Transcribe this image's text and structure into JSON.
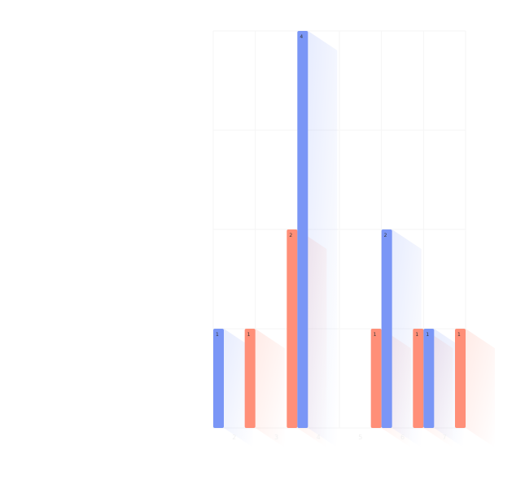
{
  "chart_data": {
    "type": "bar",
    "title": "",
    "xlabel": "",
    "ylabel": "",
    "categories": [
      "2",
      "3",
      "4",
      "5",
      "6",
      "7"
    ],
    "series": [
      {
        "color": "#7a96f6",
        "values": [
          1,
          null,
          4,
          null,
          2,
          1
        ]
      },
      {
        "color": "#ff8f78",
        "values": [
          1,
          2,
          null,
          1,
          1,
          1
        ]
      }
    ],
    "ylim": [
      0,
      4
    ],
    "grid": false,
    "legend": "none",
    "show_data_labels": true
  }
}
